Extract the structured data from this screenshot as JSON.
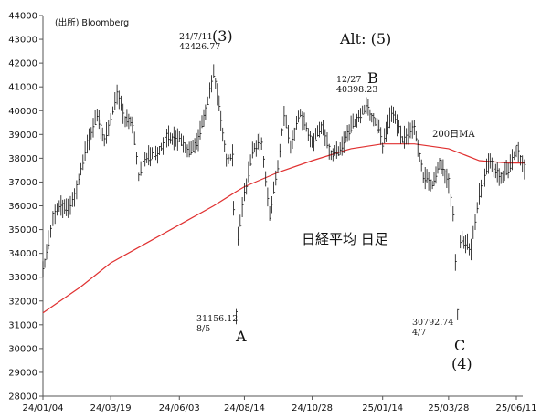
{
  "source": "(出所) Bloomberg",
  "chart_data": {
    "type": "candlestick",
    "title": "日経平均 日足",
    "ylim": [
      28000,
      44000
    ],
    "y_ticks": [
      28000,
      29000,
      30000,
      31000,
      32000,
      33000,
      34000,
      35000,
      36000,
      37000,
      38000,
      39000,
      40000,
      41000,
      42000,
      43000,
      44000
    ],
    "x_ticks": [
      "24/01/04",
      "24/03/19",
      "24/06/03",
      "24/08/14",
      "24/10/28",
      "25/01/14",
      "25/03/28",
      "25/06/11"
    ],
    "colors": {
      "price": "#111111",
      "ma": "#e03030",
      "axis": "#555555"
    },
    "price_series": {
      "name": "日経平均",
      "points": [
        [
          "24/01/04",
          33200
        ],
        [
          "24/01/10",
          34500
        ],
        [
          "24/01/15",
          35600
        ],
        [
          "24/01/22",
          36000
        ],
        [
          "24/02/01",
          35900
        ],
        [
          "24/02/08",
          36400
        ],
        [
          "24/02/15",
          37500
        ],
        [
          "24/02/22",
          38600
        ],
        [
          "24/03/04",
          39800
        ],
        [
          "24/03/12",
          38800
        ],
        [
          "24/03/19",
          39700
        ],
        [
          "24/03/26",
          40700
        ],
        [
          "24/04/04",
          39600
        ],
        [
          "24/04/12",
          39500
        ],
        [
          "24/04/19",
          37200
        ],
        [
          "24/04/26",
          38000
        ],
        [
          "24/05/10",
          38200
        ],
        [
          "24/05/20",
          38900
        ],
        [
          "24/06/03",
          38800
        ],
        [
          "24/06/14",
          38200
        ],
        [
          "24/06/24",
          38800
        ],
        [
          "24/07/02",
          40000
        ],
        [
          "24/07/11",
          41600
        ],
        [
          "24/07/17",
          40200
        ],
        [
          "24/07/25",
          37900
        ],
        [
          "24/08/01",
          38100
        ],
        [
          "24/08/02",
          35900
        ],
        [
          "24/08/05",
          31500
        ],
        [
          "24/08/07",
          34700
        ],
        [
          "24/08/14",
          36500
        ],
        [
          "24/08/23",
          38300
        ],
        [
          "24/09/02",
          38700
        ],
        [
          "24/09/11",
          35600
        ],
        [
          "24/09/20",
          37700
        ],
        [
          "24/09/27",
          39800
        ],
        [
          "24/10/04",
          38600
        ],
        [
          "24/10/15",
          39900
        ],
        [
          "24/10/28",
          38600
        ],
        [
          "24/11/07",
          39400
        ],
        [
          "24/11/18",
          38200
        ],
        [
          "24/11/28",
          38300
        ],
        [
          "24/12/10",
          39300
        ],
        [
          "24/12/27",
          40200
        ],
        [
          "25/01/10",
          39200
        ],
        [
          "25/01/14",
          38500
        ],
        [
          "25/01/24",
          40000
        ],
        [
          "25/02/05",
          38800
        ],
        [
          "25/02/18",
          39300
        ],
        [
          "25/02/28",
          37200
        ],
        [
          "25/03/10",
          36900
        ],
        [
          "25/03/18",
          37800
        ],
        [
          "25/03/28",
          37000
        ],
        [
          "25/04/02",
          35700
        ],
        [
          "25/04/07",
          31500
        ],
        [
          "25/04/10",
          34600
        ],
        [
          "25/04/22",
          34200
        ],
        [
          "25/05/01",
          36500
        ],
        [
          "25/05/13",
          38000
        ],
        [
          "25/05/23",
          37200
        ],
        [
          "25/06/02",
          37500
        ],
        [
          "25/06/11",
          38400
        ],
        [
          "25/06/20",
          37600
        ]
      ]
    },
    "ma_series": {
      "name": "200日MA",
      "points": [
        [
          "24/01/04",
          31500
        ],
        [
          "24/02/15",
          32600
        ],
        [
          "24/03/19",
          33600
        ],
        [
          "24/04/26",
          34400
        ],
        [
          "24/06/03",
          35200
        ],
        [
          "24/07/11",
          36000
        ],
        [
          "24/08/05",
          36600
        ],
        [
          "24/08/14",
          36800
        ],
        [
          "24/09/20",
          37400
        ],
        [
          "24/10/28",
          37900
        ],
        [
          "24/12/10",
          38400
        ],
        [
          "25/01/14",
          38600
        ],
        [
          "25/02/18",
          38600
        ],
        [
          "25/03/28",
          38400
        ],
        [
          "25/05/01",
          37900
        ],
        [
          "25/06/02",
          37800
        ],
        [
          "25/06/20",
          37800
        ]
      ]
    },
    "annotations": [
      {
        "lines": [
          "24/7/11",
          "42426.77"
        ],
        "size": "small"
      },
      {
        "lines": [
          "(3)"
        ],
        "size": "wave"
      },
      {
        "lines": [
          "Alt: (5)"
        ],
        "size": "wave"
      },
      {
        "lines": [
          "12/27",
          "40398.23"
        ],
        "size": "small"
      },
      {
        "lines": [
          "B"
        ],
        "size": "wave"
      },
      {
        "lines": [
          "200日MA"
        ],
        "size": "ma"
      },
      {
        "lines": [
          "31156.12",
          "8/5"
        ],
        "size": "small"
      },
      {
        "lines": [
          "A"
        ],
        "size": "wave"
      },
      {
        "lines": [
          "30792.74",
          "4/7"
        ],
        "size": "small"
      },
      {
        "lines": [
          "C"
        ],
        "size": "wave"
      },
      {
        "lines": [
          "(4)"
        ],
        "size": "wave"
      }
    ]
  }
}
